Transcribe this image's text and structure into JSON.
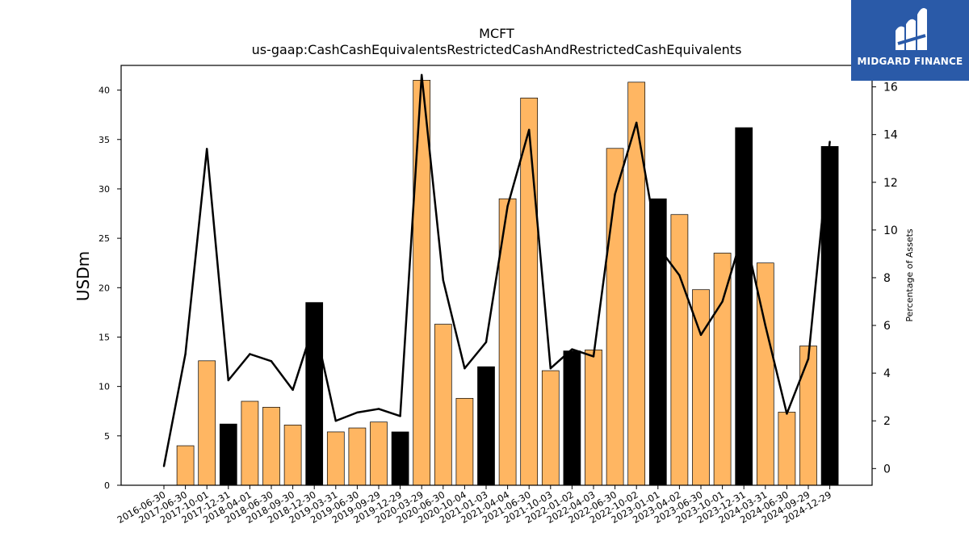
{
  "title": "MCFT",
  "subtitle": "us-gaap:CashCashEquivalentsRestrictedCashAndRestrictedCashEquivalents",
  "logo": {
    "text": "MIDGARD FINANCE",
    "color": "#2a5aa8"
  },
  "colors": {
    "bar_default": "#ffb662",
    "bar_highlight": "#000000",
    "line": "#000000"
  },
  "chart_data": {
    "type": "bar",
    "categories": [
      "2016-06-30",
      "2017-06-30",
      "2017-10-01",
      "2017-12-31",
      "2018-04-01",
      "2018-06-30",
      "2018-09-30",
      "2018-12-30",
      "2019-03-31",
      "2019-06-30",
      "2019-09-29",
      "2019-12-29",
      "2020-03-29",
      "2020-06-30",
      "2020-10-04",
      "2021-01-03",
      "2021-04-04",
      "2021-06-30",
      "2021-10-03",
      "2022-01-02",
      "2022-04-03",
      "2022-06-30",
      "2022-10-02",
      "2023-01-01",
      "2023-04-02",
      "2023-06-30",
      "2023-10-01",
      "2023-12-31",
      "2024-03-31",
      "2024-06-30",
      "2024-09-29",
      "2024-12-29"
    ],
    "series": [
      {
        "type": "bar",
        "axis": "left",
        "values": [
          0,
          4.0,
          12.6,
          6.2,
          8.5,
          7.9,
          6.1,
          18.5,
          5.4,
          5.8,
          6.4,
          5.4,
          41.0,
          16.3,
          8.8,
          12.0,
          29.0,
          39.2,
          11.6,
          13.6,
          13.7,
          34.1,
          40.8,
          29.0,
          27.4,
          19.8,
          23.5,
          36.2,
          22.5,
          7.4,
          14.1,
          34.3
        ],
        "highlight": [
          false,
          false,
          false,
          true,
          false,
          false,
          false,
          true,
          false,
          false,
          false,
          true,
          false,
          false,
          false,
          true,
          false,
          false,
          false,
          true,
          false,
          false,
          false,
          true,
          false,
          false,
          false,
          true,
          false,
          false,
          false,
          true
        ]
      },
      {
        "type": "line",
        "axis": "right",
        "values": [
          0.1,
          4.8,
          13.4,
          3.7,
          4.8,
          4.5,
          3.3,
          6.1,
          2.0,
          2.35,
          2.5,
          2.2,
          16.5,
          7.9,
          4.2,
          5.3,
          11.0,
          14.2,
          4.2,
          5.0,
          4.7,
          11.5,
          14.5,
          9.3,
          8.1,
          5.6,
          7.0,
          10.0,
          6.0,
          2.3,
          4.6,
          13.7
        ]
      }
    ],
    "ylabel": "USDm",
    "y2label": "Percentage of Assets",
    "ylim": [
      0,
      42.5
    ],
    "y2lim": [
      -0.7,
      16.9
    ],
    "yticks": [
      0,
      5,
      10,
      15,
      20,
      25,
      30,
      35,
      40
    ],
    "y2ticks": [
      0,
      2,
      4,
      6,
      8,
      10,
      12,
      14,
      16
    ],
    "grid": false
  }
}
